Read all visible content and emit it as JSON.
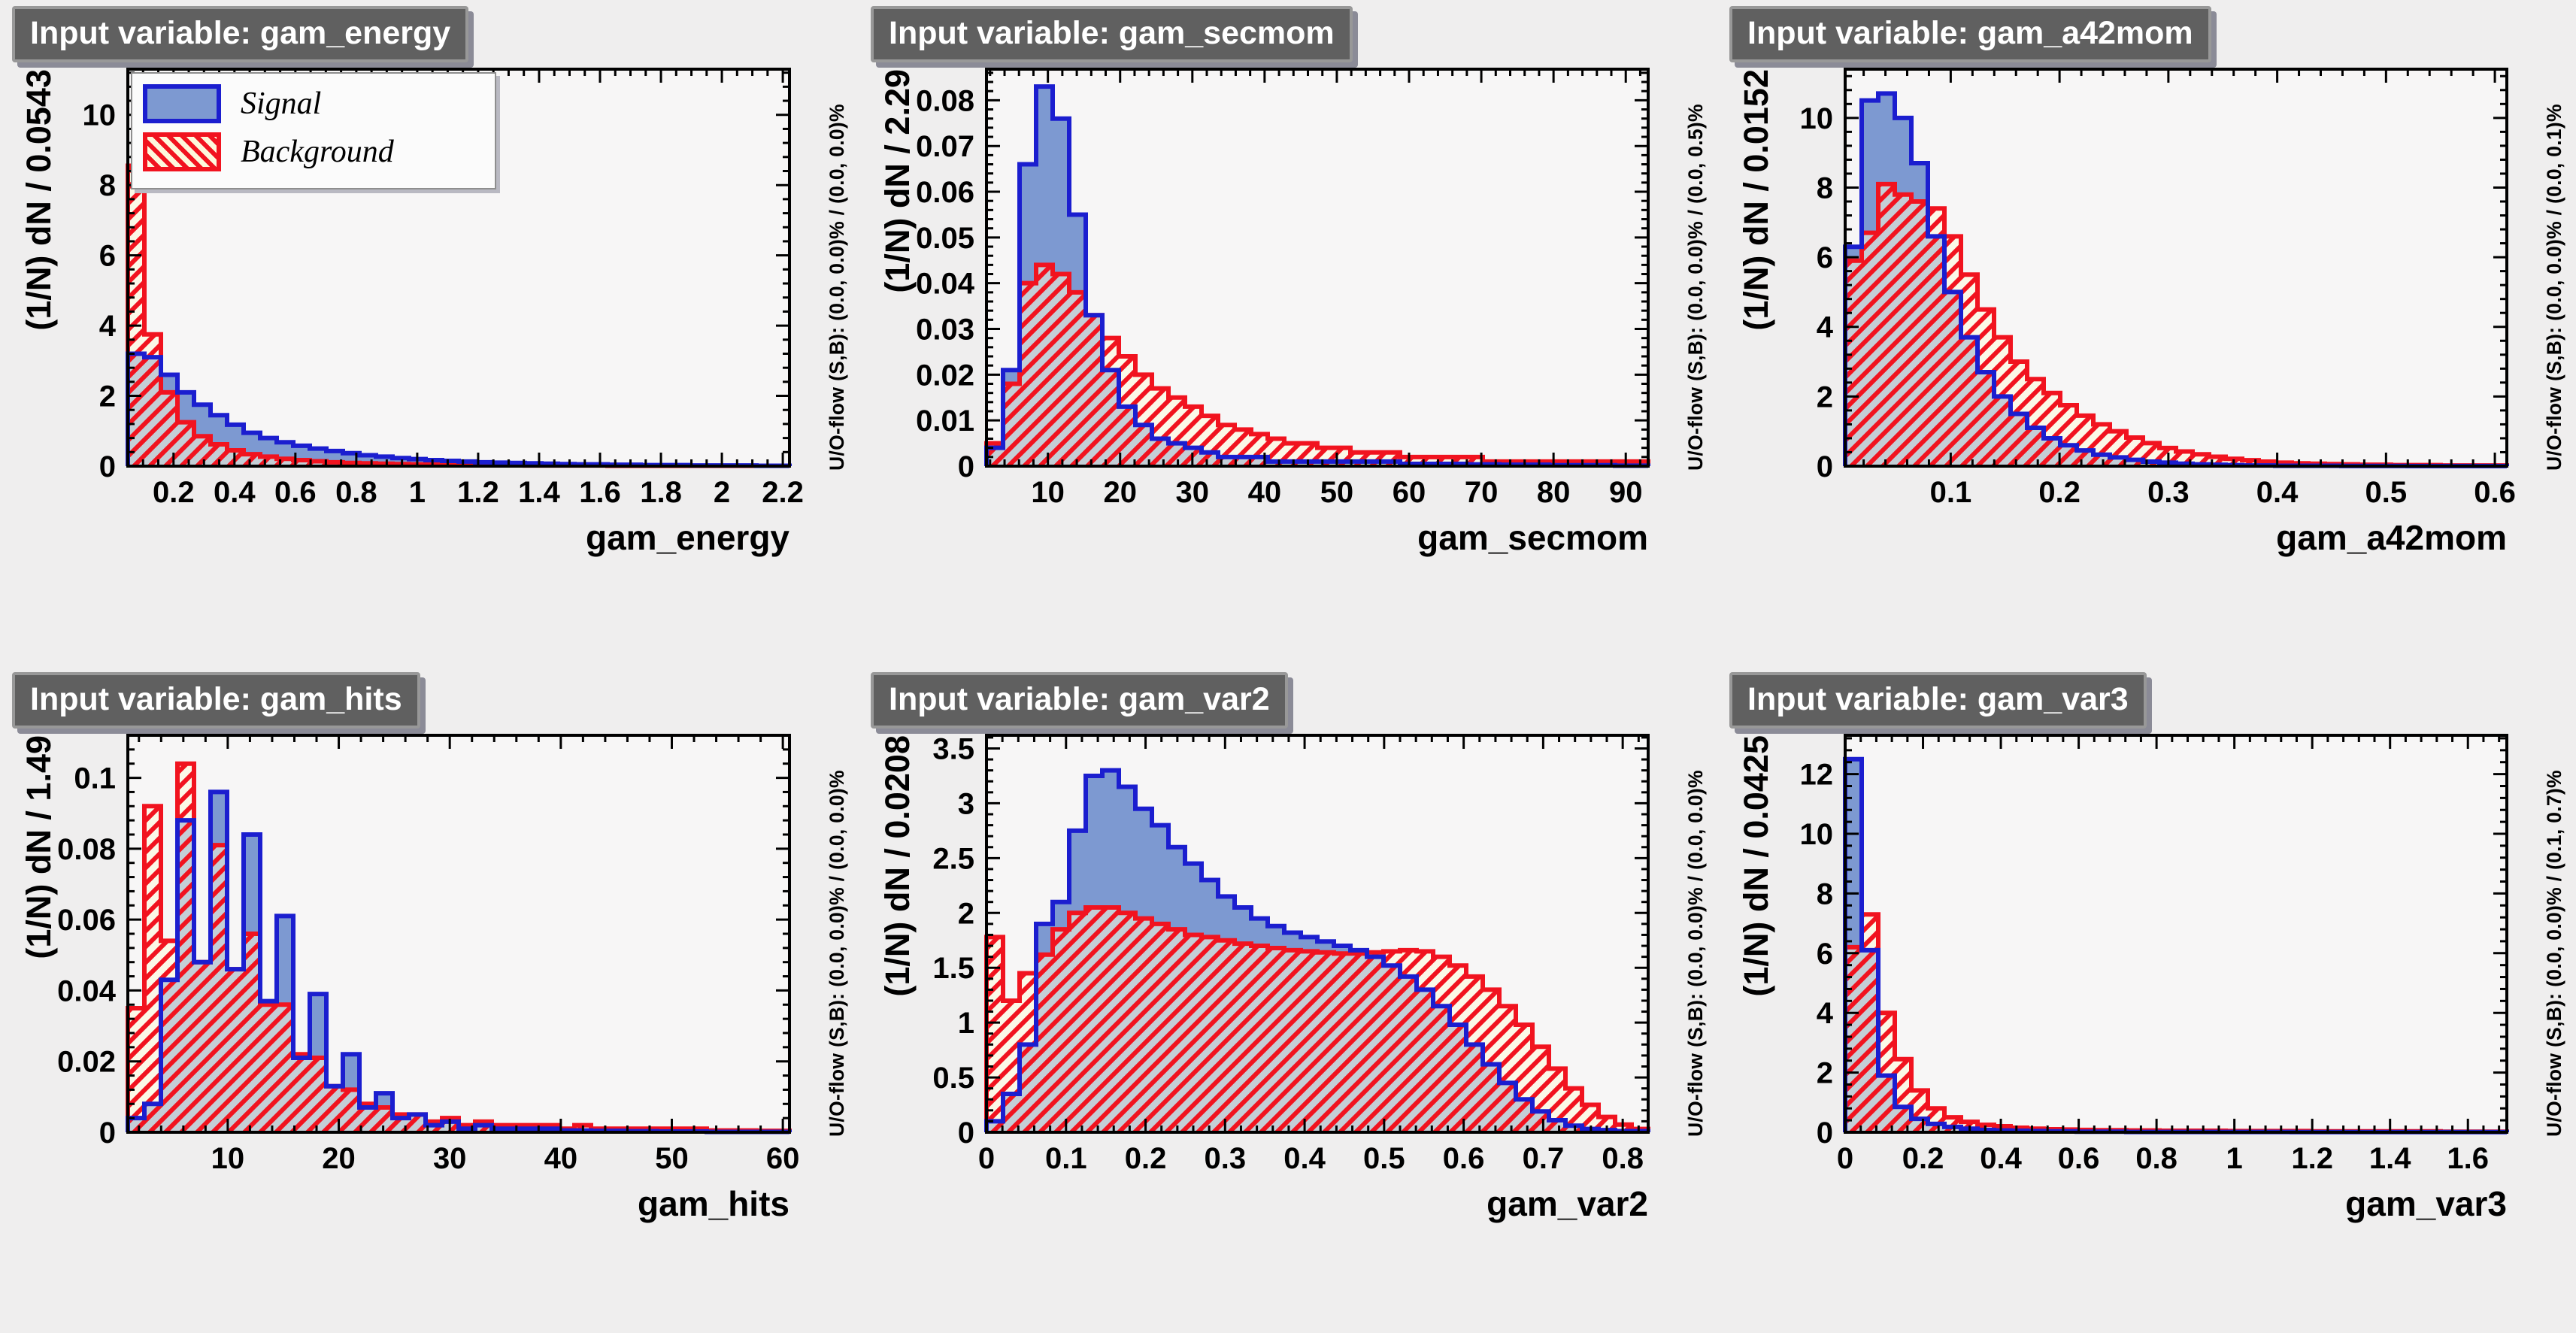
{
  "colors": {
    "canvas_bg": "#efeeee",
    "plot_bg": "#f7f6f6",
    "frame": "#000000",
    "signal_fill": "#7d99d1",
    "signal_line": "#1b1ecf",
    "background_line": "#f1131f",
    "background_hatch_bg": "rgba(255,250,219,0.55)",
    "title_chip_bg": "#606060",
    "title_chip_text": "#ffffff"
  },
  "legend": {
    "signal": "Signal",
    "background": "Background"
  },
  "chart_data": [
    {
      "type": "histogram-step",
      "title": "Input variable: gam_energy",
      "xlabel": "gam_energy",
      "ylabel": "(1/N) dN / 0.0543",
      "uoflow": "U/O-flow (S,B): (0.0, 0.0)% / (0.0, 0.0)%",
      "xlim": [
        0.05,
        2.222
      ],
      "ylim": [
        0,
        11.3
      ],
      "bin_start": 0.05,
      "bin_width": 0.0543,
      "x_ticks": [
        0.2,
        0.4,
        0.6,
        0.8,
        1,
        1.2,
        1.4,
        1.6,
        1.8,
        2,
        2.2
      ],
      "x_tick_labels": [
        "0.2",
        "0.4",
        "0.6",
        "0.8",
        "1",
        "1.2",
        "1.4",
        "1.6",
        "1.8",
        "2",
        "2.2"
      ],
      "x_minor": 0.05,
      "y_ticks": [
        0,
        2,
        4,
        6,
        8,
        10
      ],
      "y_tick_labels": [
        "0",
        "2",
        "4",
        "6",
        "8",
        "10"
      ],
      "y_minor": 0.4,
      "legend_visible": true,
      "series": [
        {
          "name": "Signal",
          "values": [
            3.2,
            3.1,
            2.6,
            2.1,
            1.75,
            1.45,
            1.18,
            0.95,
            0.8,
            0.68,
            0.58,
            0.5,
            0.43,
            0.37,
            0.31,
            0.27,
            0.23,
            0.2,
            0.17,
            0.15,
            0.13,
            0.11,
            0.1,
            0.09,
            0.08,
            0.07,
            0.06,
            0.05,
            0.05,
            0.04,
            0.04,
            0.03,
            0.03,
            0.03,
            0.02,
            0.02,
            0.02,
            0.02,
            0.01,
            0.01
          ]
        },
        {
          "name": "Background",
          "values": [
            8.55,
            3.75,
            2.1,
            1.25,
            0.85,
            0.62,
            0.45,
            0.34,
            0.27,
            0.21,
            0.17,
            0.14,
            0.11,
            0.09,
            0.08,
            0.07,
            0.06,
            0.05,
            0.05,
            0.04,
            0.04,
            0.03,
            0.03,
            0.03,
            0.02,
            0.02,
            0.02,
            0.02,
            0.02,
            0.01,
            0.01,
            0.01,
            0.01,
            0.01,
            0.01,
            0.01,
            0.01,
            0.01,
            0.01,
            0.01
          ]
        }
      ]
    },
    {
      "type": "histogram-step",
      "title": "Input variable: gam_secmom",
      "xlabel": "gam_secmom",
      "ylabel": "(1/N) dN / 2.29",
      "uoflow": "U/O-flow (S,B): (0.0, 0.0)% / (0.0, 0.5)%",
      "xlim": [
        1.5,
        93.1
      ],
      "ylim": [
        0,
        0.0868
      ],
      "bin_start": 1.5,
      "bin_width": 2.29,
      "x_ticks": [
        10,
        20,
        30,
        40,
        50,
        60,
        70,
        80,
        90
      ],
      "x_tick_labels": [
        "10",
        "20",
        "30",
        "40",
        "50",
        "60",
        "70",
        "80",
        "90"
      ],
      "x_minor": 2,
      "y_ticks": [
        0,
        0.01,
        0.02,
        0.03,
        0.04,
        0.05,
        0.06,
        0.07,
        0.08
      ],
      "y_tick_labels": [
        "0",
        "0.01",
        "0.02",
        "0.03",
        "0.04",
        "0.05",
        "0.06",
        "0.07",
        "0.08"
      ],
      "y_minor": 0.002,
      "legend_visible": false,
      "series": [
        {
          "name": "Signal",
          "values": [
            0.004,
            0.021,
            0.066,
            0.083,
            0.076,
            0.055,
            0.033,
            0.021,
            0.013,
            0.009,
            0.006,
            0.005,
            0.004,
            0.003,
            0.002,
            0.002,
            0.002,
            0.001,
            0.001,
            0.001,
            0.001,
            0.001,
            0.001,
            0.001,
            0.001,
            0.0005,
            0.0005,
            0.0005,
            0.0005,
            0.0004,
            0.0004,
            0.0003,
            0.0003,
            0.0003,
            0.0002,
            0.0002,
            0.0002,
            0.0002,
            0.0001,
            0.0001
          ]
        },
        {
          "name": "Background",
          "values": [
            0.005,
            0.018,
            0.04,
            0.044,
            0.042,
            0.038,
            0.033,
            0.028,
            0.024,
            0.02,
            0.017,
            0.015,
            0.013,
            0.011,
            0.009,
            0.008,
            0.007,
            0.006,
            0.005,
            0.005,
            0.004,
            0.004,
            0.003,
            0.003,
            0.003,
            0.002,
            0.002,
            0.002,
            0.002,
            0.002,
            0.001,
            0.001,
            0.001,
            0.001,
            0.001,
            0.001,
            0.001,
            0.001,
            0.001,
            0.001
          ]
        }
      ]
    },
    {
      "type": "histogram-step",
      "title": "Input variable: gam_a42mom",
      "xlabel": "gam_a42mom",
      "ylabel": "(1/N) dN / 0.0152",
      "uoflow": "U/O-flow (S,B): (0.0, 0.0)% / (0.0, 0.1)%",
      "xlim": [
        0.003,
        0.611
      ],
      "ylim": [
        0,
        11.4
      ],
      "bin_start": 0.003,
      "bin_width": 0.0152,
      "x_ticks": [
        0.1,
        0.2,
        0.3,
        0.4,
        0.5,
        0.6
      ],
      "x_tick_labels": [
        "0.1",
        "0.2",
        "0.3",
        "0.4",
        "0.5",
        "0.6"
      ],
      "x_minor": 0.02,
      "y_ticks": [
        0,
        2,
        4,
        6,
        8,
        10
      ],
      "y_tick_labels": [
        "0",
        "2",
        "4",
        "6",
        "8",
        "10"
      ],
      "y_minor": 0.4,
      "legend_visible": false,
      "series": [
        {
          "name": "Signal",
          "values": [
            6.3,
            10.5,
            10.7,
            10.0,
            8.7,
            6.6,
            5.0,
            3.7,
            2.7,
            2.0,
            1.5,
            1.1,
            0.8,
            0.6,
            0.45,
            0.33,
            0.25,
            0.18,
            0.13,
            0.1,
            0.07,
            0.05,
            0.04,
            0.03,
            0.02,
            0.02,
            0.01,
            0.01,
            0.01,
            0.01,
            0.005,
            0.005,
            0.005,
            0.005,
            0.004,
            0.004,
            0.003,
            0.003,
            0.002,
            0.002
          ]
        },
        {
          "name": "Background",
          "values": [
            5.9,
            6.7,
            8.1,
            7.8,
            7.6,
            7.4,
            6.6,
            5.5,
            4.5,
            3.7,
            3.0,
            2.5,
            2.1,
            1.75,
            1.45,
            1.2,
            1.0,
            0.82,
            0.66,
            0.52,
            0.42,
            0.34,
            0.27,
            0.21,
            0.17,
            0.13,
            0.1,
            0.08,
            0.07,
            0.06,
            0.05,
            0.04,
            0.04,
            0.03,
            0.03,
            0.03,
            0.02,
            0.02,
            0.02,
            0.02
          ]
        }
      ]
    },
    {
      "type": "histogram-step",
      "title": "Input variable: gam_hits",
      "xlabel": "gam_hits",
      "ylabel": "(1/N) dN / 1.49",
      "uoflow": "U/O-flow (S,B): (0.0, 0.0)% / (0.0, 0.0)%",
      "xlim": [
        1.0,
        60.6
      ],
      "ylim": [
        0,
        0.112
      ],
      "bin_start": 1.0,
      "bin_width": 1.49,
      "x_ticks": [
        10,
        20,
        30,
        40,
        50,
        60
      ],
      "x_tick_labels": [
        "10",
        "20",
        "30",
        "40",
        "50",
        "60"
      ],
      "x_minor": 2,
      "y_ticks": [
        0,
        0.02,
        0.04,
        0.06,
        0.08,
        0.1
      ],
      "y_tick_labels": [
        "0",
        "0.02",
        "0.04",
        "0.06",
        "0.08",
        "0.1"
      ],
      "y_minor": 0.004,
      "legend_visible": false,
      "series": [
        {
          "name": "Signal",
          "values": [
            0.004,
            0.008,
            0.043,
            0.088,
            0.048,
            0.096,
            0.046,
            0.084,
            0.037,
            0.061,
            0.021,
            0.039,
            0.013,
            0.022,
            0.007,
            0.011,
            0.004,
            0.005,
            0.002,
            0.003,
            0.001,
            0.002,
            0.001,
            0.001,
            0.001,
            0.001,
            0.0005,
            0.0005,
            0.0004,
            0.0004,
            0.0003,
            0.0003,
            0.0002,
            0.0002,
            0.0002,
            0.0001,
            0.0001,
            0.0001,
            0.0001,
            0.0001
          ]
        },
        {
          "name": "Background",
          "values": [
            0.035,
            0.092,
            0.054,
            0.104,
            0.048,
            0.081,
            0.046,
            0.056,
            0.036,
            0.036,
            0.022,
            0.021,
            0.013,
            0.012,
            0.008,
            0.007,
            0.005,
            0.005,
            0.003,
            0.004,
            0.002,
            0.003,
            0.002,
            0.002,
            0.002,
            0.002,
            0.001,
            0.002,
            0.001,
            0.001,
            0.001,
            0.001,
            0.001,
            0.001,
            0.001,
            0.0005,
            0.0005,
            0.0005,
            0.0004,
            0.0004
          ]
        }
      ]
    },
    {
      "type": "histogram-step",
      "title": "Input variable: gam_var2",
      "xlabel": "gam_var2",
      "ylabel": "(1/N) dN / 0.0208",
      "uoflow": "U/O-flow (S,B): (0.0, 0.0)% / (0.0, 0.0)%",
      "xlim": [
        0,
        0.832
      ],
      "ylim": [
        0,
        3.62
      ],
      "bin_start": 0,
      "bin_width": 0.0208,
      "x_ticks": [
        0,
        0.1,
        0.2,
        0.3,
        0.4,
        0.5,
        0.6,
        0.7,
        0.8
      ],
      "x_tick_labels": [
        "0",
        "0.1",
        "0.2",
        "0.3",
        "0.4",
        "0.5",
        "0.6",
        "0.7",
        "0.8"
      ],
      "x_minor": 0.02,
      "y_ticks": [
        0,
        0.5,
        1,
        1.5,
        2,
        2.5,
        3,
        3.5
      ],
      "y_tick_labels": [
        "0",
        "0.5",
        "1",
        "1.5",
        "2",
        "2.5",
        "3",
        "3.5"
      ],
      "y_minor": 0.1,
      "legend_visible": false,
      "series": [
        {
          "name": "Signal",
          "values": [
            0.1,
            0.35,
            0.8,
            1.9,
            2.1,
            2.75,
            3.25,
            3.3,
            3.15,
            2.95,
            2.8,
            2.6,
            2.45,
            2.3,
            2.15,
            2.05,
            1.95,
            1.88,
            1.82,
            1.78,
            1.74,
            1.7,
            1.66,
            1.6,
            1.52,
            1.42,
            1.3,
            1.15,
            0.98,
            0.8,
            0.62,
            0.45,
            0.3,
            0.19,
            0.11,
            0.06,
            0.03,
            0.02,
            0.01,
            0.01
          ]
        },
        {
          "name": "Background",
          "values": [
            1.78,
            1.2,
            1.45,
            1.62,
            1.85,
            2.0,
            2.05,
            2.05,
            2.0,
            1.95,
            1.9,
            1.85,
            1.8,
            1.78,
            1.75,
            1.72,
            1.7,
            1.68,
            1.66,
            1.65,
            1.64,
            1.63,
            1.63,
            1.64,
            1.65,
            1.66,
            1.65,
            1.6,
            1.52,
            1.42,
            1.3,
            1.15,
            0.98,
            0.78,
            0.58,
            0.4,
            0.25,
            0.14,
            0.07,
            0.03
          ]
        }
      ]
    },
    {
      "type": "histogram-step",
      "title": "Input variable: gam_var3",
      "xlabel": "gam_var3",
      "ylabel": "(1/N) dN / 0.0425",
      "uoflow": "U/O-flow (S,B): (0.0, 0.0)% / (0.1, 0.7)%",
      "xlim": [
        0,
        1.7
      ],
      "ylim": [
        0,
        13.3
      ],
      "bin_start": 0,
      "bin_width": 0.0425,
      "x_ticks": [
        0,
        0.2,
        0.4,
        0.6,
        0.8,
        1,
        1.2,
        1.4,
        1.6
      ],
      "x_tick_labels": [
        "0",
        "0.2",
        "0.4",
        "0.6",
        "0.8",
        "1",
        "1.2",
        "1.4",
        "1.6"
      ],
      "x_minor": 0.04,
      "y_ticks": [
        0,
        2,
        4,
        6,
        8,
        10,
        12
      ],
      "y_tick_labels": [
        "0",
        "2",
        "4",
        "6",
        "8",
        "10",
        "12"
      ],
      "y_minor": 0.4,
      "legend_visible": false,
      "series": [
        {
          "name": "Signal",
          "values": [
            12.5,
            6.1,
            1.9,
            0.85,
            0.45,
            0.28,
            0.18,
            0.12,
            0.08,
            0.06,
            0.05,
            0.04,
            0.03,
            0.03,
            0.02,
            0.02,
            0.02,
            0.01,
            0.01,
            0.01,
            0.01,
            0.01,
            0.01,
            0.01,
            0.01,
            0.01,
            0.01,
            0.005,
            0.005,
            0.005,
            0.005,
            0.005,
            0.005,
            0.005,
            0.005,
            0.005,
            0.005,
            0.005,
            0.005,
            0.005
          ]
        },
        {
          "name": "Background",
          "values": [
            6.2,
            7.3,
            4.0,
            2.45,
            1.4,
            0.8,
            0.5,
            0.35,
            0.25,
            0.2,
            0.15,
            0.12,
            0.1,
            0.09,
            0.08,
            0.07,
            0.07,
            0.06,
            0.06,
            0.05,
            0.05,
            0.05,
            0.05,
            0.04,
            0.04,
            0.04,
            0.04,
            0.04,
            0.03,
            0.03,
            0.03,
            0.03,
            0.03,
            0.03,
            0.03,
            0.03,
            0.02,
            0.02,
            0.02,
            0.02
          ]
        }
      ]
    }
  ]
}
